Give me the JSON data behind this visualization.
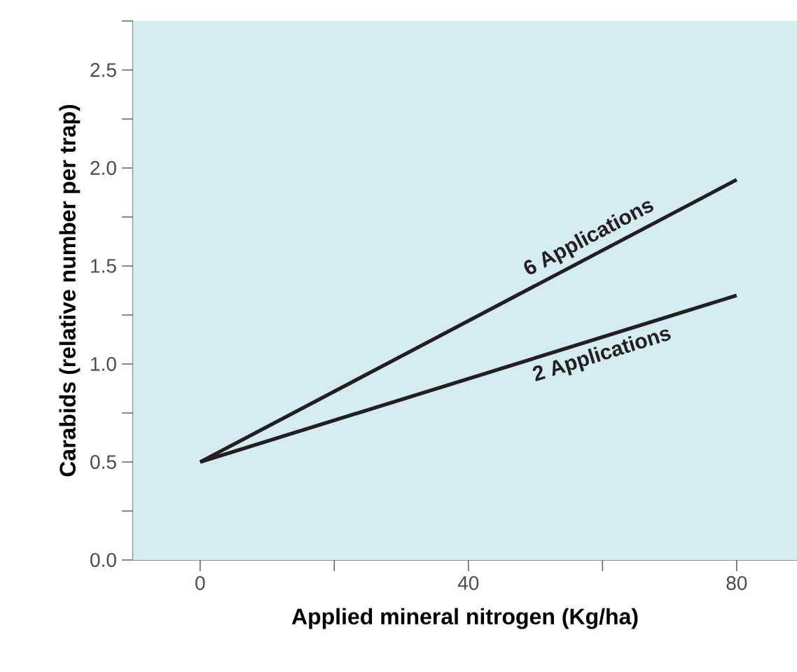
{
  "chart_data": {
    "type": "line",
    "xlabel": "Applied mineral nitrogen (Kg/ha)",
    "ylabel": "Carabids (relative number per trap)",
    "x": [
      0,
      80
    ],
    "series": [
      {
        "color": "#231f20",
        "values": [
          0.5,
          1.94
        ]
      },
      {
        "color": "#231f20",
        "values": [
          0.5,
          1.35
        ]
      }
    ],
    "annotations": [
      "6 Applications",
      "2 Applications"
    ],
    "xlim": [
      -10,
      89
    ],
    "ylim": [
      0,
      2.75
    ],
    "xticks": [
      0,
      {
        "value": 20,
        "label": null
      },
      40,
      {
        "value": 60,
        "label": null
      },
      80
    ],
    "yticks": [
      {
        "value": 0,
        "label": "0.0"
      },
      {
        "value": 0.25,
        "label": null
      },
      0.5,
      {
        "value": 0.75,
        "label": null
      },
      {
        "value": 1,
        "label": "1.0"
      },
      {
        "value": 1.25,
        "label": null
      },
      1.5,
      {
        "value": 1.75,
        "label": null
      },
      {
        "value": 2,
        "label": "2.0"
      },
      {
        "value": 2.25,
        "label": null
      },
      2.5,
      {
        "value": 2.75,
        "label": null
      }
    ],
    "grid": false,
    "marker": "none",
    "line_style": "solid"
  }
}
